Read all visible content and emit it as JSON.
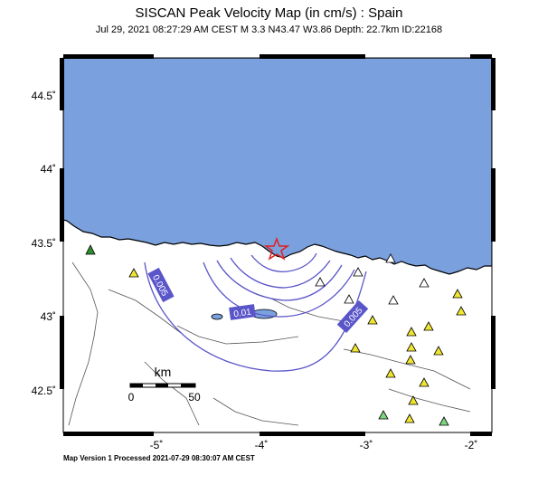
{
  "header": {
    "title": "SISCAN Peak Velocity Map (in cm/s) : Spain",
    "subtitle": "Jul 29, 2021 08:27:29 AM CEST   M 3.3   N43.47 W3.86   Depth: 22.7km   ID:22168"
  },
  "footer": {
    "text": "Map Version 1 Processed 2021-07-29 08:30:07 AM CEST"
  },
  "axes": {
    "lat_ticks": [
      "44.5˚",
      "44˚",
      "43.5˚",
      "43˚",
      "42.5˚"
    ],
    "lon_ticks": [
      "-5˚",
      "-4˚",
      "-3˚",
      "-2˚"
    ]
  },
  "scale_bar": {
    "unit": "km",
    "start": "0",
    "end": "50"
  },
  "contours": [
    {
      "label": "0.005"
    },
    {
      "label": "0.01"
    },
    {
      "label": "0.005"
    }
  ],
  "colors": {
    "sea": "#7aa0dd",
    "land": "#ffffff",
    "contour": "#5a55c9",
    "epicenter": "#e02020",
    "station_yellow": "#f0e630",
    "station_green": "#2e8b2e",
    "station_light_green": "#7ed67e",
    "station_white": "#ffffff"
  },
  "epicenter": {
    "icon": "star-icon",
    "lat": 43.47,
    "lon": -3.86
  }
}
